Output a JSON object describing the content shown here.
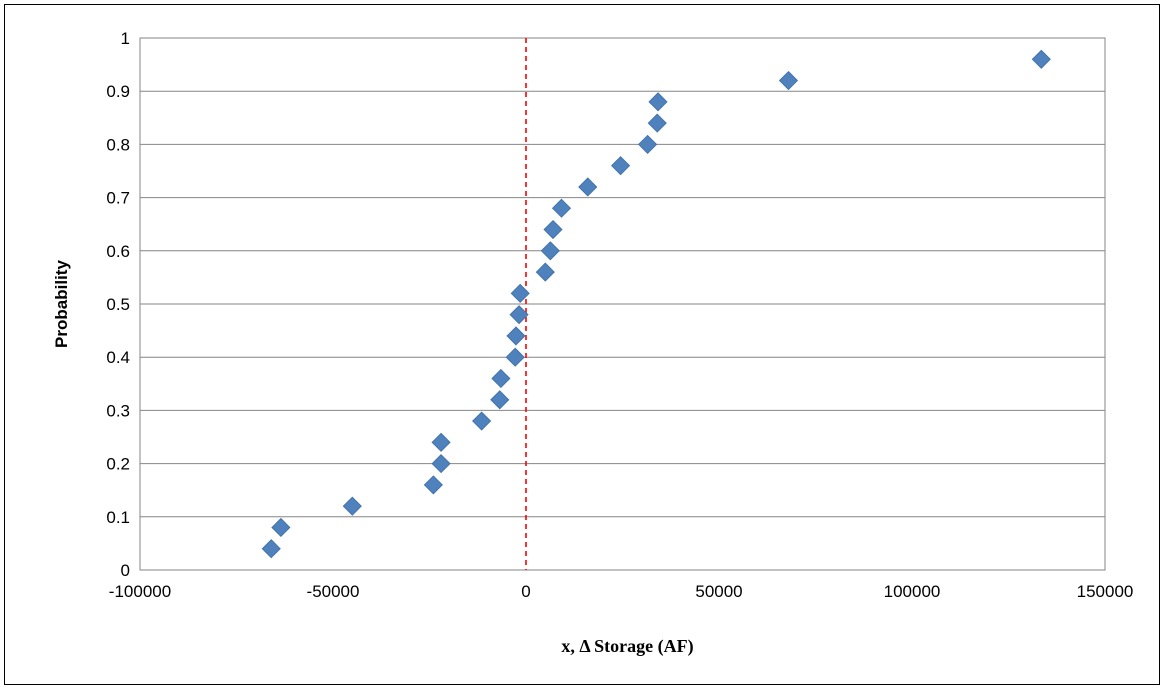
{
  "chart_data": {
    "type": "scatter",
    "title": "",
    "xlabel": "x, Δ Storage (AF)",
    "ylabel": "Probability",
    "xlim": [
      -100000,
      150000
    ],
    "ylim": [
      0,
      1
    ],
    "x_ticks": [
      -100000,
      -50000,
      0,
      50000,
      100000,
      150000
    ],
    "y_ticks": [
      0,
      0.1,
      0.2,
      0.3,
      0.4,
      0.5,
      0.6,
      0.7,
      0.8,
      0.9,
      1
    ],
    "x_tick_labels": [
      "-100000",
      "-50000",
      "0",
      "50000",
      "100000",
      "150000"
    ],
    "y_tick_labels": [
      "0",
      "0.1",
      "0.2",
      "0.3",
      "0.4",
      "0.5",
      "0.6",
      "0.7",
      "0.8",
      "0.9",
      "1"
    ],
    "grid": "horizontal",
    "legend": "none",
    "marker": "diamond",
    "marker_color": "#4f81bd",
    "reference_line": {
      "x": 0,
      "style": "dashed",
      "color": "#ff0000"
    },
    "series": [
      {
        "points": [
          {
            "x": -66000,
            "y": 0.04
          },
          {
            "x": -63500,
            "y": 0.08
          },
          {
            "x": -45000,
            "y": 0.12
          },
          {
            "x": -24000,
            "y": 0.16
          },
          {
            "x": -22000,
            "y": 0.2
          },
          {
            "x": -22000,
            "y": 0.24
          },
          {
            "x": -11500,
            "y": 0.28
          },
          {
            "x": -6800,
            "y": 0.32
          },
          {
            "x": -6500,
            "y": 0.36
          },
          {
            "x": -2800,
            "y": 0.4
          },
          {
            "x": -2600,
            "y": 0.44
          },
          {
            "x": -1800,
            "y": 0.48
          },
          {
            "x": -1500,
            "y": 0.52
          },
          {
            "x": 5000,
            "y": 0.56
          },
          {
            "x": 6300,
            "y": 0.6
          },
          {
            "x": 7000,
            "y": 0.64
          },
          {
            "x": 9200,
            "y": 0.68
          },
          {
            "x": 16000,
            "y": 0.72
          },
          {
            "x": 24500,
            "y": 0.76
          },
          {
            "x": 31500,
            "y": 0.8
          },
          {
            "x": 34000,
            "y": 0.84
          },
          {
            "x": 34200,
            "y": 0.88
          },
          {
            "x": 68000,
            "y": 0.92
          },
          {
            "x": 133500,
            "y": 0.96
          }
        ]
      }
    ]
  }
}
